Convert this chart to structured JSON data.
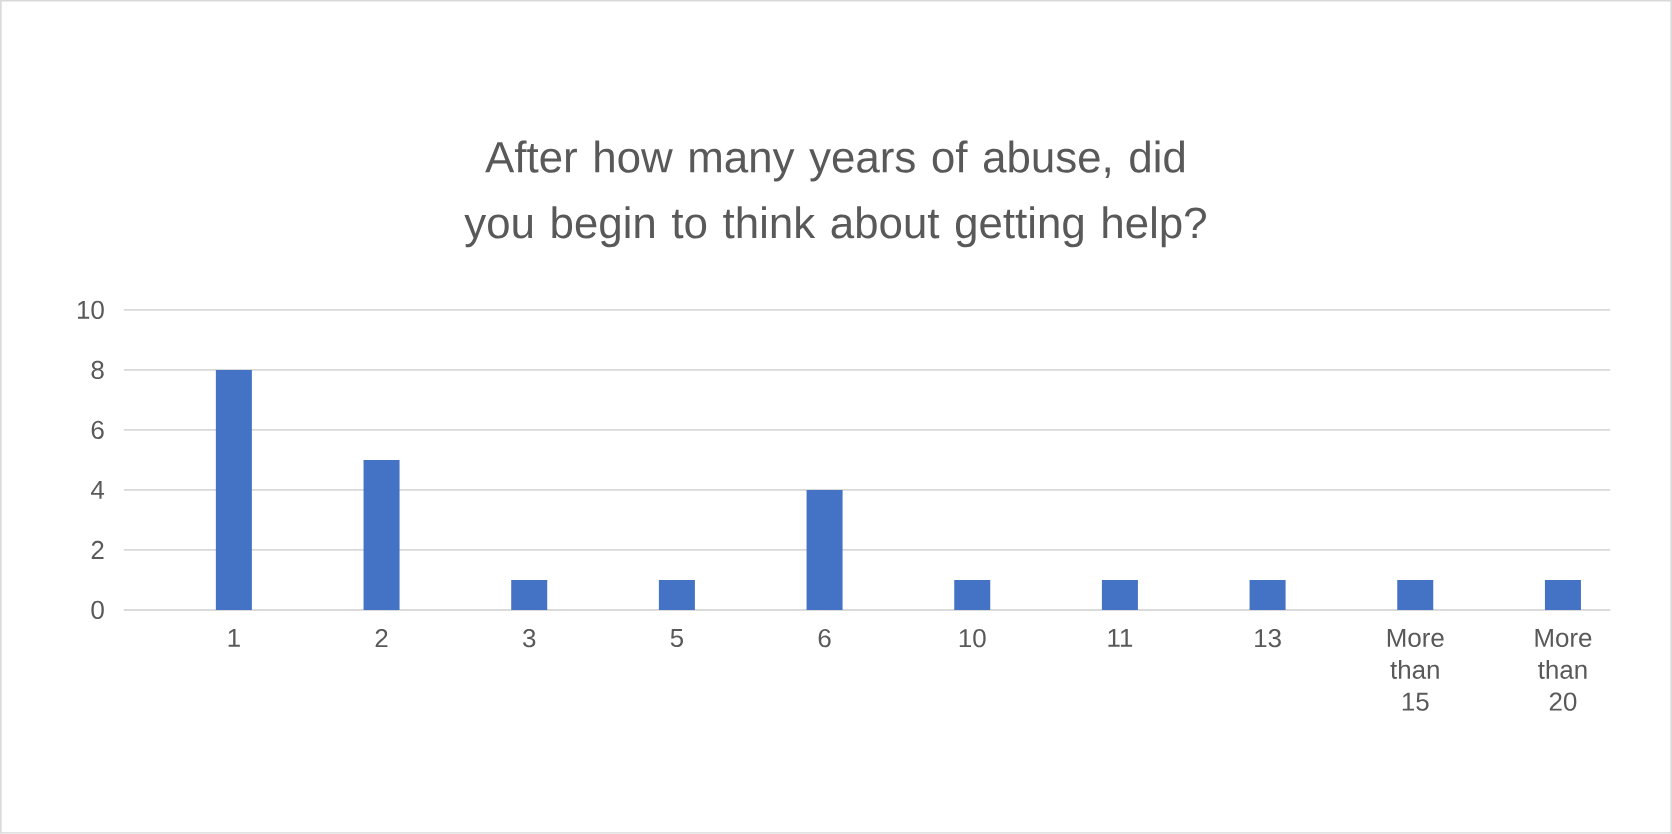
{
  "chart_data": {
    "type": "bar",
    "title": "After how many years of abuse, did you begin to think about getting help?",
    "categories": [
      "1",
      "2",
      "3",
      "5",
      "6",
      "10",
      "11",
      "13",
      "More than 15",
      "More than 20"
    ],
    "values": [
      8,
      5,
      1,
      1,
      4,
      1,
      1,
      1,
      1,
      1
    ],
    "color": "#4472c4",
    "ylim": [
      0,
      10
    ],
    "yticks": [
      0,
      2,
      4,
      6,
      8,
      10
    ],
    "grid": "y"
  }
}
